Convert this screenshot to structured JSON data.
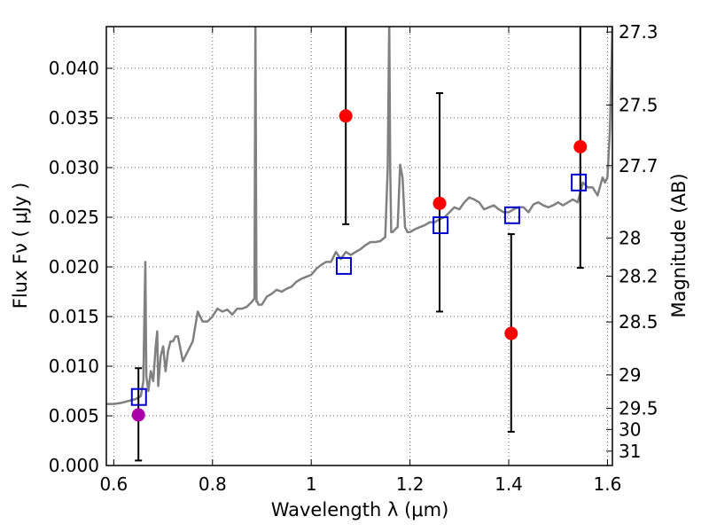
{
  "chart_data": {
    "type": "scatter",
    "xlabel": "Wavelength  λ (μm)",
    "ylabel": "Flux  Fν  ( μJy )",
    "y2label": "Magnitude (AB)",
    "xlim": [
      0.585,
      1.61
    ],
    "ylim": [
      0.0,
      0.0442
    ],
    "x_ticks": [
      0.6,
      0.8,
      1.0,
      1.2,
      1.4,
      1.6
    ],
    "x_tick_labels": [
      "0.6",
      "0.8",
      "1",
      "1.2",
      "1.4",
      "1.6"
    ],
    "y_ticks": [
      0.0,
      0.005,
      0.01,
      0.015,
      0.02,
      0.025,
      0.03,
      0.035,
      0.04
    ],
    "y_tick_labels": [
      "0.000",
      "0.005",
      "0.010",
      "0.015",
      "0.020",
      "0.025",
      "0.030",
      "0.035",
      "0.040"
    ],
    "mag_ticks": [
      27.3,
      27.5,
      27.7,
      28,
      28.2,
      28.5,
      29,
      29.5,
      30,
      31
    ],
    "mag_tick_labels": [
      "27.3",
      "27.5",
      "27.7",
      "28",
      "28.2",
      "28.5",
      "29",
      "29.5",
      "30",
      "31"
    ],
    "grid": true,
    "colors": {
      "template": "#808080",
      "measured": "#ff0000",
      "dropout": "#aa00aa",
      "model": "#0000cc",
      "errorbar": "#000000"
    },
    "series": [
      {
        "name": "model template spectrum",
        "kind": "line",
        "x": [
          0.585,
          0.6,
          0.615,
          0.63,
          0.645,
          0.655,
          0.66,
          0.662,
          0.664,
          0.666,
          0.67,
          0.675,
          0.68,
          0.685,
          0.688,
          0.69,
          0.695,
          0.7,
          0.705,
          0.71,
          0.715,
          0.72,
          0.725,
          0.73,
          0.74,
          0.75,
          0.76,
          0.77,
          0.78,
          0.79,
          0.8,
          0.81,
          0.82,
          0.83,
          0.84,
          0.85,
          0.86,
          0.87,
          0.88,
          0.885,
          0.887,
          0.889,
          0.891,
          0.893,
          0.9,
          0.91,
          0.92,
          0.93,
          0.94,
          0.95,
          0.96,
          0.97,
          0.98,
          0.99,
          1.0,
          1.01,
          1.02,
          1.03,
          1.04,
          1.05,
          1.06,
          1.07,
          1.08,
          1.09,
          1.1,
          1.11,
          1.12,
          1.13,
          1.14,
          1.15,
          1.155,
          1.158,
          1.16,
          1.162,
          1.165,
          1.17,
          1.175,
          1.18,
          1.185,
          1.19,
          1.195,
          1.2,
          1.21,
          1.22,
          1.23,
          1.24,
          1.25,
          1.26,
          1.27,
          1.28,
          1.29,
          1.3,
          1.31,
          1.32,
          1.33,
          1.34,
          1.35,
          1.36,
          1.37,
          1.38,
          1.39,
          1.4,
          1.41,
          1.42,
          1.43,
          1.44,
          1.45,
          1.46,
          1.47,
          1.48,
          1.49,
          1.5,
          1.51,
          1.52,
          1.53,
          1.54,
          1.55,
          1.56,
          1.57,
          1.58,
          1.59,
          1.595,
          1.6,
          1.605,
          1.61
        ],
        "y": [
          0.0062,
          0.0062,
          0.0063,
          0.0065,
          0.0067,
          0.007,
          0.0085,
          0.015,
          0.0205,
          0.009,
          0.0075,
          0.0095,
          0.0085,
          0.012,
          0.0135,
          0.008,
          0.011,
          0.012,
          0.0095,
          0.0115,
          0.0125,
          0.0125,
          0.013,
          0.013,
          0.0105,
          0.0115,
          0.0125,
          0.0155,
          0.0145,
          0.0145,
          0.015,
          0.0158,
          0.0155,
          0.0157,
          0.0152,
          0.0158,
          0.0158,
          0.016,
          0.0165,
          0.0168,
          0.045,
          0.0165,
          0.0165,
          0.0162,
          0.0162,
          0.017,
          0.0173,
          0.0177,
          0.0175,
          0.0178,
          0.018,
          0.0185,
          0.0188,
          0.019,
          0.0192,
          0.0198,
          0.0202,
          0.0205,
          0.0205,
          0.0215,
          0.0208,
          0.0215,
          0.0212,
          0.0215,
          0.0218,
          0.0222,
          0.0225,
          0.0225,
          0.0226,
          0.023,
          0.03,
          0.045,
          0.03,
          0.0235,
          0.0235,
          0.0238,
          0.024,
          0.0303,
          0.029,
          0.024,
          0.0235,
          0.0235,
          0.0238,
          0.024,
          0.0242,
          0.0245,
          0.0245,
          0.0248,
          0.025,
          0.0255,
          0.026,
          0.0258,
          0.0265,
          0.027,
          0.0268,
          0.0265,
          0.0258,
          0.026,
          0.0262,
          0.0258,
          0.0255,
          0.0255,
          0.0258,
          0.026,
          0.026,
          0.0255,
          0.0263,
          0.0265,
          0.0262,
          0.026,
          0.0262,
          0.0265,
          0.0262,
          0.0265,
          0.0268,
          0.0265,
          0.0285,
          0.028,
          0.028,
          0.0272,
          0.029,
          0.0285,
          0.029,
          0.0338,
          0.0442
        ]
      },
      {
        "name": "measured photometry",
        "kind": "errorbar",
        "x": [
          1.07,
          1.26,
          1.405,
          1.545
        ],
        "y": [
          0.0352,
          0.0264,
          0.0133,
          0.0321
        ],
        "yerr_low": [
          0.0109,
          0.0109,
          0.0099,
          0.0122
        ],
        "yerr_high": [
          0.0118,
          0.0111,
          0.01,
          0.0155
        ]
      },
      {
        "name": "dropout photometry",
        "kind": "errorbar",
        "x": [
          0.65
        ],
        "y": [
          0.0051
        ],
        "yerr_low": [
          0.0046
        ],
        "yerr_high": [
          0.0047
        ]
      },
      {
        "name": "model band fluxes",
        "kind": "marker",
        "x": [
          0.651,
          1.066,
          1.262,
          1.407,
          1.542
        ],
        "y": [
          0.0069,
          0.0201,
          0.0242,
          0.0252,
          0.0285
        ]
      }
    ]
  }
}
